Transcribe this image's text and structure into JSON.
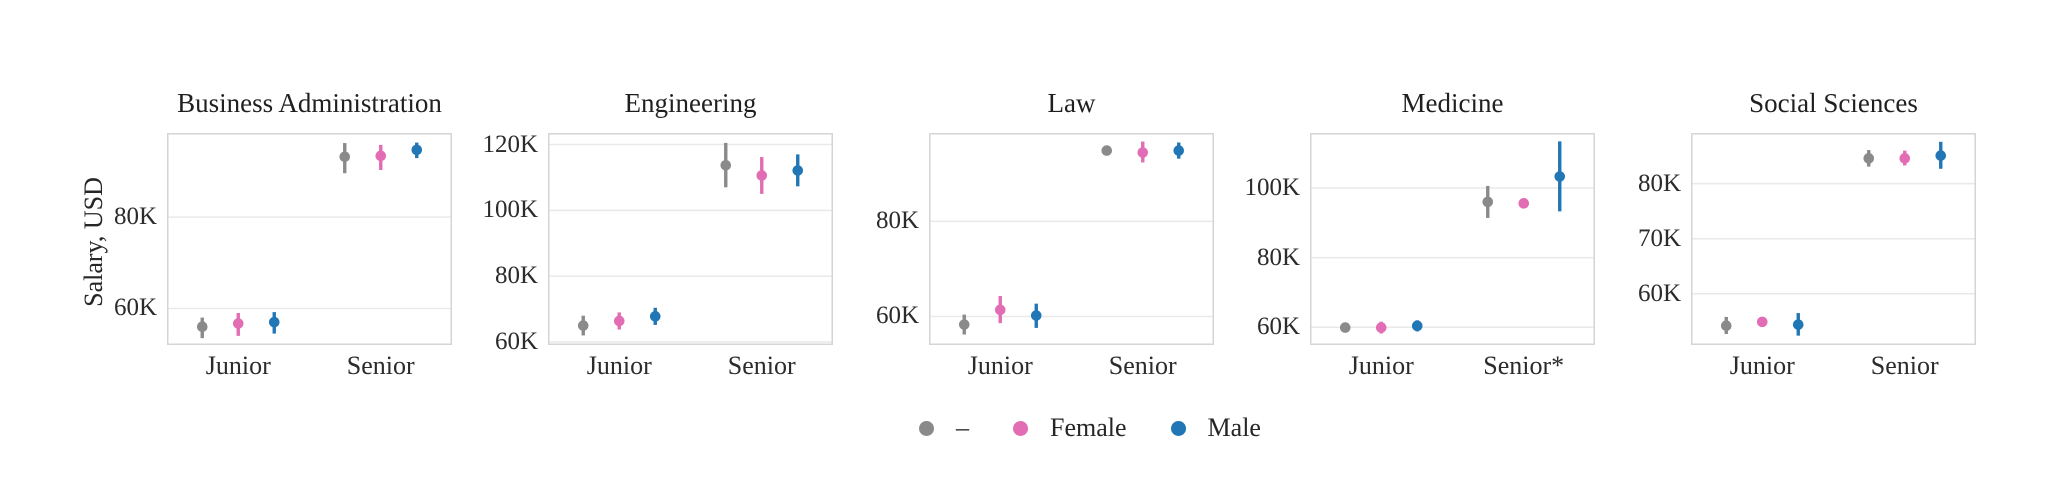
{
  "figure": {
    "ylabel": "Salary, USD",
    "background": "#ffffff",
    "grid_color": "#e9e9e9",
    "border_color": "#d5d5d5"
  },
  "legend": {
    "position": "bottom-center",
    "items": [
      {
        "label": "–",
        "color": "#8a8a8a"
      },
      {
        "label": "Female",
        "color": "#e26db4"
      },
      {
        "label": "Male",
        "color": "#2176b5"
      }
    ]
  },
  "chart_data": [
    {
      "type": "scatter",
      "title": "Business Administration",
      "ylabel": "Salary, USD",
      "x_categories": [
        "Junior",
        "Senior"
      ],
      "ylim": [
        52.0,
        98.4
      ],
      "yticks": [
        60,
        80
      ],
      "ytick_labels": [
        "60K",
        "80K"
      ],
      "grid": true,
      "series": [
        {
          "name": "–",
          "values": [
            56.0,
            93.2
          ],
          "ci_low": [
            53.5,
            89.6
          ],
          "ci_high": [
            58.0,
            96.2
          ]
        },
        {
          "name": "Female",
          "values": [
            56.7,
            93.4
          ],
          "ci_low": [
            54.0,
            90.3
          ],
          "ci_high": [
            59.0,
            95.8
          ]
        },
        {
          "name": "Male",
          "values": [
            57.0,
            94.7
          ],
          "ci_low": [
            54.5,
            92.9
          ],
          "ci_high": [
            59.2,
            96.3
          ]
        }
      ]
    },
    {
      "type": "scatter",
      "title": "Engineering",
      "ylabel": "Salary, USD",
      "x_categories": [
        "Junior",
        "Senior"
      ],
      "ylim": [
        59.1,
        123.5
      ],
      "yticks": [
        60,
        80,
        100,
        120
      ],
      "ytick_labels": [
        "60K",
        "80K",
        "100K",
        "120K"
      ],
      "grid": true,
      "series": [
        {
          "name": "–",
          "values": [
            65.0,
            113.7
          ],
          "ci_low": [
            62.0,
            107.0
          ],
          "ci_high": [
            68.0,
            120.5
          ]
        },
        {
          "name": "Female",
          "values": [
            66.4,
            110.6
          ],
          "ci_low": [
            63.8,
            105.0
          ],
          "ci_high": [
            69.0,
            116.2
          ]
        },
        {
          "name": "Male",
          "values": [
            67.8,
            112.1
          ],
          "ci_low": [
            65.2,
            107.3
          ],
          "ci_high": [
            70.4,
            117.0
          ]
        }
      ]
    },
    {
      "type": "scatter",
      "title": "Law",
      "ylabel": "Salary, USD",
      "x_categories": [
        "Junior",
        "Senior"
      ],
      "ylim": [
        54.0,
        98.6
      ],
      "yticks": [
        60,
        80
      ],
      "ytick_labels": [
        "60K",
        "80K"
      ],
      "grid": true,
      "series": [
        {
          "name": "–",
          "values": [
            58.3,
            94.9
          ],
          "ci_low": [
            56.2,
            94.4
          ],
          "ci_high": [
            60.4,
            95.4
          ]
        },
        {
          "name": "Female",
          "values": [
            61.4,
            94.5
          ],
          "ci_low": [
            58.6,
            92.4
          ],
          "ci_high": [
            64.3,
            96.8
          ]
        },
        {
          "name": "Male",
          "values": [
            60.2,
            94.9
          ],
          "ci_low": [
            57.6,
            93.2
          ],
          "ci_high": [
            62.7,
            96.6
          ]
        }
      ]
    },
    {
      "type": "scatter",
      "title": "Medicine",
      "ylabel": "Salary, USD",
      "x_categories": [
        "Junior",
        "Senior*"
      ],
      "ylim": [
        54.9,
        115.8
      ],
      "yticks": [
        60,
        80,
        100
      ],
      "ytick_labels": [
        "60K",
        "80K",
        "100K"
      ],
      "grid": true,
      "series": [
        {
          "name": "–",
          "values": [
            59.9,
            96.0
          ],
          "ci_low": [
            59.0,
            91.4
          ],
          "ci_high": [
            60.8,
            100.6
          ]
        },
        {
          "name": "Female",
          "values": [
            59.9,
            95.6
          ],
          "ci_low": [
            58.2,
            94.9
          ],
          "ci_high": [
            61.6,
            96.3
          ]
        },
        {
          "name": "Male",
          "values": [
            60.4,
            103.3
          ],
          "ci_low": [
            58.8,
            93.3
          ],
          "ci_high": [
            62.0,
            113.4
          ]
        }
      ]
    },
    {
      "type": "scatter",
      "title": "Social Sciences",
      "ylabel": "Salary, USD",
      "x_categories": [
        "Junior",
        "Senior"
      ],
      "ylim": [
        50.7,
        89.2
      ],
      "yticks": [
        60,
        70,
        80
      ],
      "ytick_labels": [
        "60K",
        "70K",
        "80K"
      ],
      "grid": true,
      "series": [
        {
          "name": "–",
          "values": [
            54.2,
            84.6
          ],
          "ci_low": [
            52.7,
            83.1
          ],
          "ci_high": [
            55.8,
            86.1
          ]
        },
        {
          "name": "Female",
          "values": [
            54.9,
            84.6
          ],
          "ci_low": [
            54.0,
            83.3
          ],
          "ci_high": [
            55.8,
            86.0
          ]
        },
        {
          "name": "Male",
          "values": [
            54.4,
            85.1
          ],
          "ci_low": [
            52.4,
            82.7
          ],
          "ci_high": [
            56.5,
            87.6
          ]
        }
      ]
    }
  ]
}
